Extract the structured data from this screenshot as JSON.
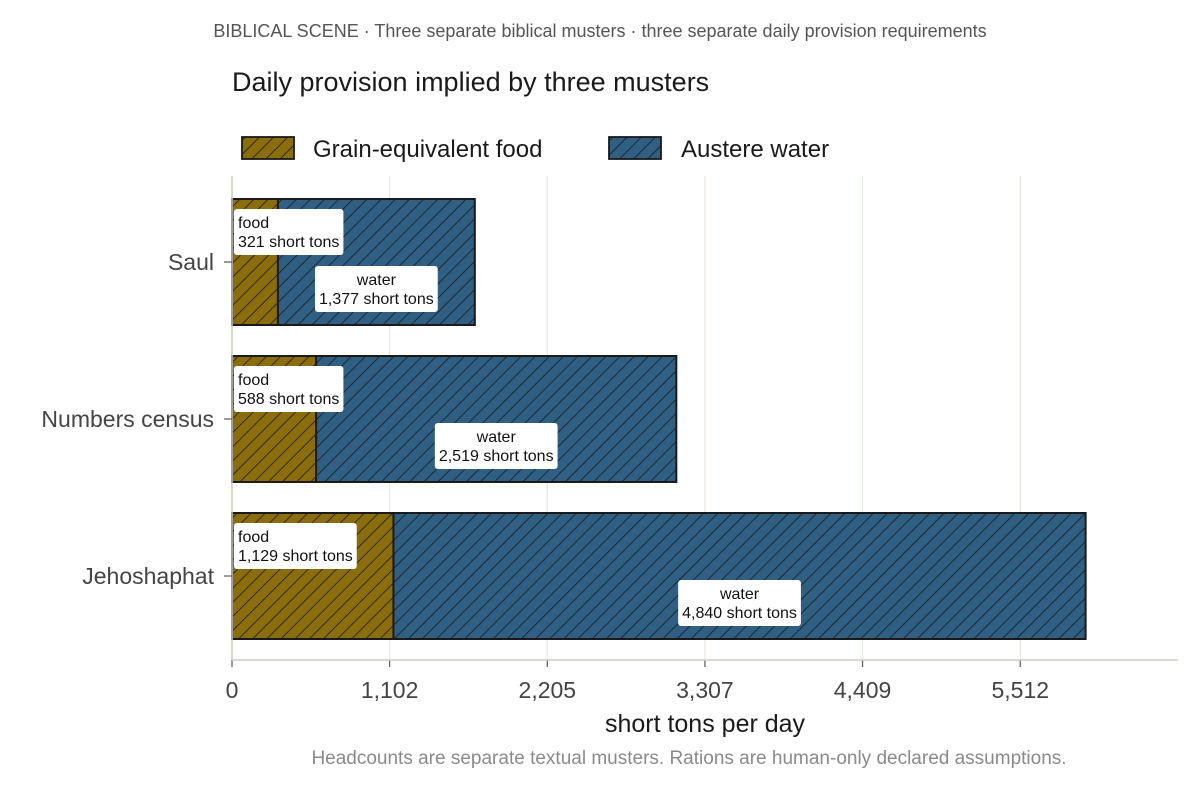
{
  "kicker": "BIBLICAL SCENE · Three separate biblical musters · three separate daily provision requirements",
  "caption": "Headcounts are separate textual musters. Rations are human-only declared assumptions.",
  "colors": {
    "food": "#8c6d0c",
    "water": "#2f5f82",
    "grid": "#ece8dc",
    "outline": "#1a1a1a"
  },
  "chart_data": {
    "type": "bar",
    "orientation": "horizontal",
    "stacked": true,
    "title": "Daily provision implied by three musters",
    "xlabel": "short tons per day",
    "ylabel": "",
    "categories": [
      "Saul",
      "Numbers census",
      "Jehoshaphat"
    ],
    "series": [
      {
        "name": "Grain-equivalent food",
        "key": "food",
        "label_prefix": "food",
        "values": [
          321,
          588,
          1129
        ],
        "labels": [
          "321 short tons",
          "588 short tons",
          "1,129 short tons"
        ]
      },
      {
        "name": "Austere water",
        "key": "water",
        "label_prefix": "water",
        "values": [
          1377,
          2519,
          4840
        ],
        "labels": [
          "1,377 short tons",
          "2,519 short tons",
          "4,840 short tons"
        ]
      }
    ],
    "xticks": [
      0,
      1102,
      2205,
      3307,
      4409,
      5512
    ],
    "xtick_labels": [
      "0",
      "1,102",
      "2,205",
      "3,307",
      "4,409",
      "5,512"
    ],
    "xlim": [
      0,
      6615
    ],
    "grid": true,
    "legend_position": "top",
    "pattern": "diagonal-hatch"
  }
}
